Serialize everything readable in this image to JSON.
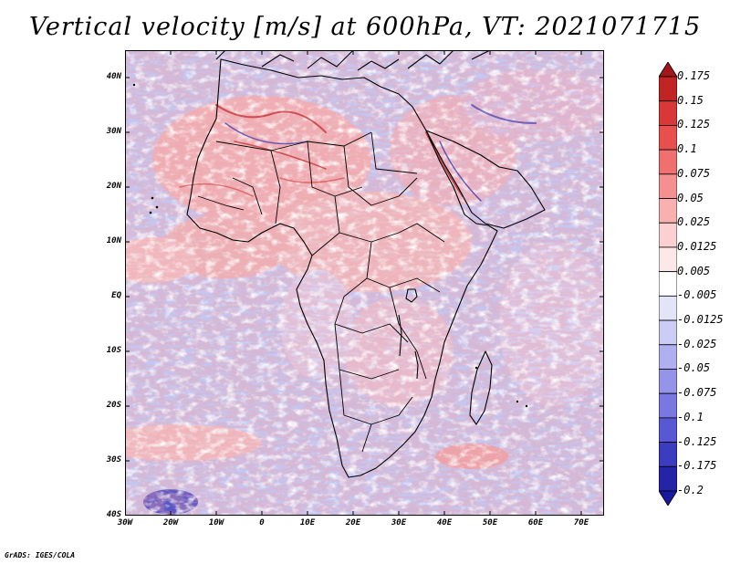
{
  "title": "Vertical velocity [m/s] at 600hPa, VT: 2021071715",
  "credit": "GrADS: IGES/COLA",
  "map": {
    "lon_range": [
      -30,
      75
    ],
    "lat_range": [
      -40,
      45
    ],
    "lat_labels": [
      "40N",
      "30N",
      "20N",
      "10N",
      "EQ",
      "10S",
      "20S",
      "30S",
      "40S"
    ],
    "lat_values": [
      40,
      30,
      20,
      10,
      0,
      -10,
      -20,
      -30,
      -40
    ],
    "lon_labels": [
      "30W",
      "20W",
      "10W",
      "0",
      "10E",
      "20E",
      "30E",
      "40E",
      "50E",
      "60E",
      "70E"
    ],
    "lon_values": [
      -30,
      -20,
      -10,
      0,
      10,
      20,
      30,
      40,
      50,
      60,
      70
    ],
    "background_color": "#c8c8f0"
  },
  "colorbar": {
    "labels": [
      "0.175",
      "0.15",
      "0.125",
      "0.1",
      "0.075",
      "0.05",
      "0.025",
      "0.0125",
      "0.005",
      "-0.005",
      "-0.0125",
      "-0.025",
      "-0.05",
      "-0.075",
      "-0.1",
      "-0.125",
      "-0.175",
      "-0.2"
    ],
    "colors": [
      "#a01818",
      "#c02424",
      "#d83838",
      "#e85050",
      "#f07070",
      "#f49090",
      "#f8b0b0",
      "#fad0d0",
      "#fce8e8",
      "#ffffff",
      "#e4e4f8",
      "#ccccf4",
      "#b0b0f0",
      "#9494e8",
      "#7878e0",
      "#5858d4",
      "#3c3cc0",
      "#2424a8",
      "#1818a0"
    ]
  }
}
